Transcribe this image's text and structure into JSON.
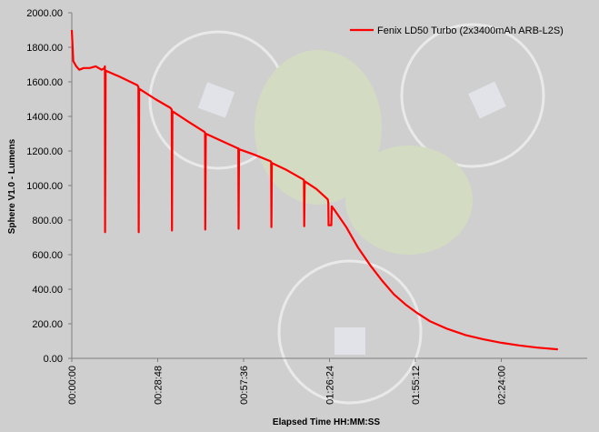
{
  "chart_data": {
    "type": "line",
    "title": "",
    "xlabel": "Elapsed Time HH:MM:SS",
    "ylabel": "Sphere V1.0 - Lumens",
    "x_unit": "HH:MM:SS",
    "xlim": [
      "00:00:00",
      "02:52:48"
    ],
    "ylim": [
      0,
      2000
    ],
    "yticks": [
      "0.00",
      "200.00",
      "400.00",
      "600.00",
      "800.00",
      "1000.00",
      "1200.00",
      "1400.00",
      "1600.00",
      "1800.00",
      "2000.00"
    ],
    "xticks": [
      "00:00:00",
      "00:28:48",
      "00:57:36",
      "01:26:24",
      "01:55:12",
      "02:24:00"
    ],
    "grid": false,
    "legend_position": "top-right",
    "series_color": "#ff0000",
    "series": [
      {
        "name": "Fenix LD50 Turbo (2x3400mAh ARB-L2S)",
        "points": [
          [
            "00:00:00",
            1900
          ],
          [
            "00:00:30",
            1720
          ],
          [
            "00:01:30",
            1690
          ],
          [
            "00:02:30",
            1670
          ],
          [
            "00:04:00",
            1680
          ],
          [
            "00:06:00",
            1680
          ],
          [
            "00:08:00",
            1690
          ],
          [
            "00:09:00",
            1680
          ],
          [
            "00:10:00",
            1670
          ],
          [
            "00:11:00",
            1680
          ],
          [
            "00:11:05",
            1690
          ],
          [
            "00:11:10",
            730
          ],
          [
            "00:11:20",
            1665
          ],
          [
            "00:16:00",
            1630
          ],
          [
            "00:22:00",
            1580
          ],
          [
            "00:22:20",
            1570
          ],
          [
            "00:22:25",
            730
          ],
          [
            "00:22:35",
            1560
          ],
          [
            "00:28:00",
            1500
          ],
          [
            "00:33:00",
            1450
          ],
          [
            "00:33:30",
            1440
          ],
          [
            "00:33:35",
            740
          ],
          [
            "00:33:45",
            1430
          ],
          [
            "00:39:00",
            1370
          ],
          [
            "00:44:30",
            1310
          ],
          [
            "00:44:40",
            1305
          ],
          [
            "00:44:45",
            745
          ],
          [
            "00:44:55",
            1300
          ],
          [
            "00:50:00",
            1260
          ],
          [
            "00:55:40",
            1215
          ],
          [
            "00:55:50",
            1215
          ],
          [
            "00:55:55",
            750
          ],
          [
            "00:56:05",
            1210
          ],
          [
            "01:01:00",
            1180
          ],
          [
            "01:06:40",
            1140
          ],
          [
            "01:06:50",
            1135
          ],
          [
            "01:06:55",
            760
          ],
          [
            "01:07:05",
            1130
          ],
          [
            "01:12:00",
            1090
          ],
          [
            "01:17:40",
            1035
          ],
          [
            "01:17:50",
            1030
          ],
          [
            "01:17:55",
            765
          ],
          [
            "01:18:05",
            1025
          ],
          [
            "01:22:00",
            980
          ],
          [
            "01:25:50",
            920
          ],
          [
            "01:26:00",
            900
          ],
          [
            "01:26:05",
            770
          ],
          [
            "01:27:00",
            770
          ],
          [
            "01:27:10",
            880
          ],
          [
            "01:28:00",
            860
          ],
          [
            "01:32:00",
            760
          ],
          [
            "01:36:00",
            640
          ],
          [
            "01:40:00",
            540
          ],
          [
            "01:44:00",
            450
          ],
          [
            "01:48:00",
            370
          ],
          [
            "01:52:00",
            310
          ],
          [
            "01:56:00",
            260
          ],
          [
            "02:00:00",
            215
          ],
          [
            "02:06:00",
            170
          ],
          [
            "02:12:00",
            135
          ],
          [
            "02:18:00",
            110
          ],
          [
            "02:24:00",
            90
          ],
          [
            "02:30:00",
            75
          ],
          [
            "02:36:00",
            62
          ],
          [
            "02:43:00",
            52
          ]
        ]
      }
    ]
  }
}
